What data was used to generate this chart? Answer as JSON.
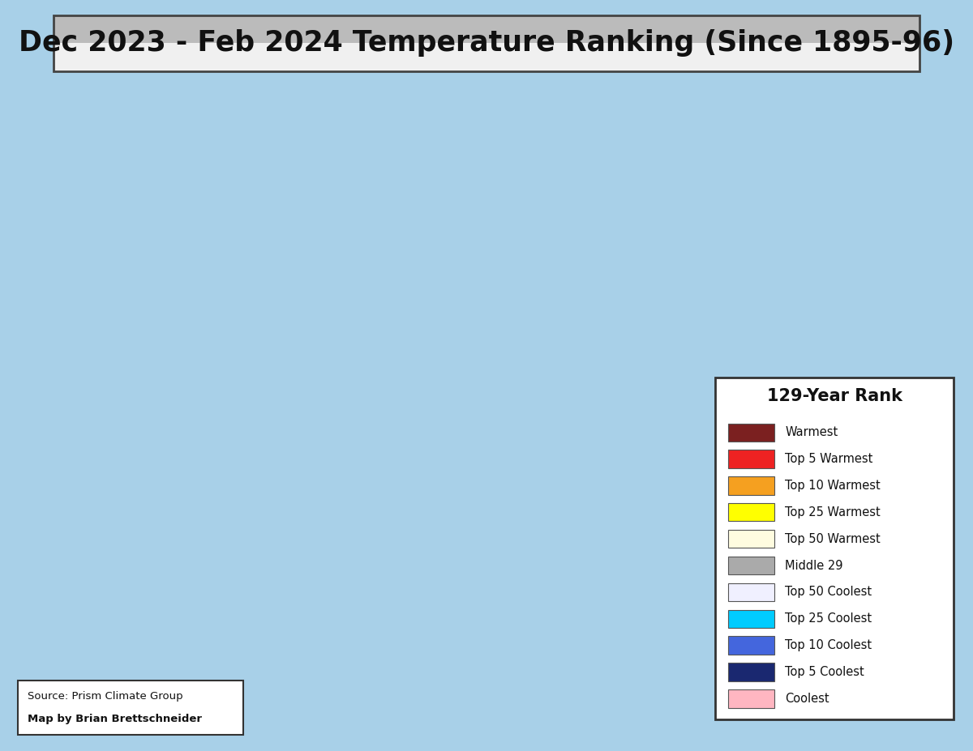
{
  "title": "Dec 2023 - Feb 2024 Temperature Ranking (Since 1895-96)",
  "title_fontsize": 25,
  "title_fontweight": "bold",
  "title_box_color_top": "#d8d8d8",
  "title_box_color_bot": "#f5f5f5",
  "title_box_edge": "#444444",
  "legend_title": "129-Year Rank",
  "legend_title_fontsize": 15,
  "legend_title_fontweight": "bold",
  "legend_items": [
    {
      "label": "Warmest",
      "color": "#7B2020"
    },
    {
      "label": "Top 5 Warmest",
      "color": "#EE2222"
    },
    {
      "label": "Top 10 Warmest",
      "color": "#F5A020"
    },
    {
      "label": "Top 25 Warmest",
      "color": "#FFFF00"
    },
    {
      "label": "Top 50 Warmest",
      "color": "#FFFCE0"
    },
    {
      "label": "Middle 29",
      "color": "#AAAAAA"
    },
    {
      "label": "Top 50 Coolest",
      "color": "#F0F0FF"
    },
    {
      "label": "Top 25 Coolest",
      "color": "#00CCFF"
    },
    {
      "label": "Top 10 Coolest",
      "color": "#4466DD"
    },
    {
      "label": "Top 5 Coolest",
      "color": "#1A2870"
    },
    {
      "label": "Coolest",
      "color": "#FFB6C1"
    }
  ],
  "legend_box_color": "#ffffff",
  "legend_box_edge": "#333333",
  "source_text_line1": "Source: Prism Climate Group",
  "source_text_line2": "Map by Brian Brettschneider",
  "source_box_color": "#ffffff",
  "source_box_edge": "#333333",
  "fig_width": 12.0,
  "fig_height": 9.27,
  "dpi": 100,
  "border_outer_color": "#5599BB",
  "ocean_color": "#A8D0E8",
  "land_bg_color": "#C8D8A0",
  "canada_color": "#D8D8B0",
  "mexico_color": "#D8C8A0"
}
